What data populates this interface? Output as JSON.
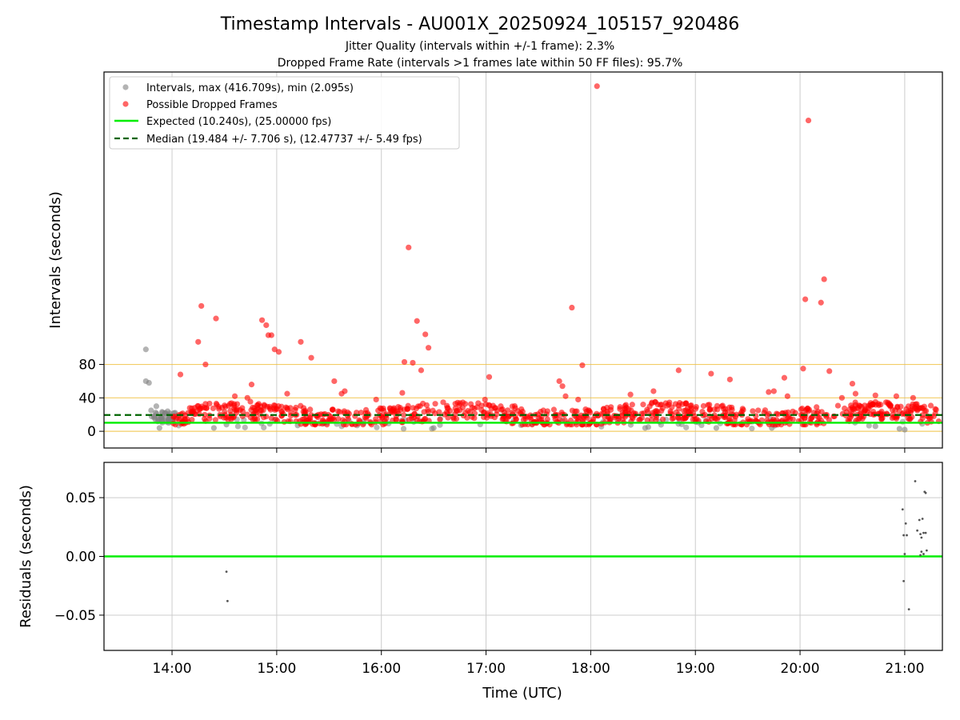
{
  "chart_data": {
    "type": "scatter",
    "title": "Timestamp Intervals - AU001X_20250924_105157_920486",
    "subtitle_lines": [
      "Jitter Quality (intervals within +/-1 frame): 2.3%",
      "Dropped Frame Rate (intervals >1 frames late within 50 FF files): 95.7%"
    ],
    "xlabel": "Time (UTC)",
    "x_ticks": [
      "14:00",
      "15:00",
      "16:00",
      "17:00",
      "18:00",
      "19:00",
      "20:00",
      "21:00"
    ],
    "x_tick_hours": [
      14,
      15,
      16,
      17,
      18,
      19,
      20,
      21
    ],
    "xlim_hours": [
      13.35,
      21.36
    ],
    "top_panel": {
      "ylabel": "Intervals (seconds)",
      "ylim": [
        -20,
        430
      ],
      "y_ticks": [
        0,
        40,
        80
      ],
      "y_tick_labels": [
        "0",
        "40",
        "80"
      ],
      "threshold_lines": [
        0,
        40,
        80
      ],
      "expected_interval": 10.24,
      "median_interval": 19.484,
      "legend": {
        "location": "upper-left",
        "entries": [
          {
            "label": "Intervals, max (416.709s), min (2.095s)",
            "kind": "gray-dot"
          },
          {
            "label": "Possible Dropped Frames",
            "kind": "red-dot"
          },
          {
            "label": "Expected (10.240s), (25.00000 fps)",
            "kind": "green-line"
          },
          {
            "label": "Median (19.484 +/- 7.706 s), (12.47737 +/- 5.49 fps)",
            "kind": "green-dashed"
          }
        ]
      },
      "dropped_outliers": [
        {
          "t": 14.08,
          "v": 68
        },
        {
          "t": 14.25,
          "v": 107
        },
        {
          "t": 14.28,
          "v": 150
        },
        {
          "t": 14.32,
          "v": 80
        },
        {
          "t": 14.42,
          "v": 135
        },
        {
          "t": 14.6,
          "v": 42
        },
        {
          "t": 14.72,
          "v": 40
        },
        {
          "t": 14.76,
          "v": 56
        },
        {
          "t": 14.86,
          "v": 133
        },
        {
          "t": 14.9,
          "v": 127
        },
        {
          "t": 14.92,
          "v": 115
        },
        {
          "t": 14.95,
          "v": 115
        },
        {
          "t": 14.98,
          "v": 98
        },
        {
          "t": 15.02,
          "v": 95
        },
        {
          "t": 15.1,
          "v": 45
        },
        {
          "t": 15.23,
          "v": 107
        },
        {
          "t": 15.33,
          "v": 88
        },
        {
          "t": 15.55,
          "v": 60
        },
        {
          "t": 15.62,
          "v": 45
        },
        {
          "t": 15.65,
          "v": 48
        },
        {
          "t": 15.95,
          "v": 38
        },
        {
          "t": 16.2,
          "v": 46
        },
        {
          "t": 16.22,
          "v": 83
        },
        {
          "t": 16.26,
          "v": 220
        },
        {
          "t": 16.3,
          "v": 82
        },
        {
          "t": 16.34,
          "v": 132
        },
        {
          "t": 16.38,
          "v": 73
        },
        {
          "t": 16.42,
          "v": 116
        },
        {
          "t": 16.45,
          "v": 100
        },
        {
          "t": 16.99,
          "v": 38
        },
        {
          "t": 17.03,
          "v": 65
        },
        {
          "t": 17.7,
          "v": 60
        },
        {
          "t": 17.73,
          "v": 54
        },
        {
          "t": 17.76,
          "v": 42
        },
        {
          "t": 17.82,
          "v": 148
        },
        {
          "t": 17.88,
          "v": 38
        },
        {
          "t": 17.92,
          "v": 79
        },
        {
          "t": 18.06,
          "v": 413
        },
        {
          "t": 18.38,
          "v": 44
        },
        {
          "t": 18.6,
          "v": 48
        },
        {
          "t": 18.84,
          "v": 73
        },
        {
          "t": 19.15,
          "v": 69
        },
        {
          "t": 19.33,
          "v": 62
        },
        {
          "t": 19.7,
          "v": 47
        },
        {
          "t": 19.75,
          "v": 48
        },
        {
          "t": 19.85,
          "v": 64
        },
        {
          "t": 19.88,
          "v": 42
        },
        {
          "t": 20.03,
          "v": 75
        },
        {
          "t": 20.05,
          "v": 158
        },
        {
          "t": 20.08,
          "v": 372
        },
        {
          "t": 20.2,
          "v": 154
        },
        {
          "t": 20.23,
          "v": 182
        },
        {
          "t": 20.28,
          "v": 72
        },
        {
          "t": 20.4,
          "v": 40
        },
        {
          "t": 20.5,
          "v": 57
        },
        {
          "t": 20.53,
          "v": 45
        },
        {
          "t": 20.72,
          "v": 43
        },
        {
          "t": 20.92,
          "v": 42
        },
        {
          "t": 21.08,
          "v": 40
        }
      ],
      "gray_outliers": [
        {
          "t": 13.75,
          "v": 98
        },
        {
          "t": 13.75,
          "v": 60
        },
        {
          "t": 13.78,
          "v": 58
        },
        {
          "t": 13.8,
          "v": 25
        },
        {
          "t": 13.83,
          "v": 18
        },
        {
          "t": 13.85,
          "v": 30
        },
        {
          "t": 13.88,
          "v": 4
        },
        {
          "t": 13.9,
          "v": 12
        },
        {
          "t": 14.4,
          "v": 4
        },
        {
          "t": 14.52,
          "v": 8
        },
        {
          "t": 15.2,
          "v": 7
        },
        {
          "t": 15.48,
          "v": 10
        },
        {
          "t": 16.5,
          "v": 4
        },
        {
          "t": 18.52,
          "v": 4
        },
        {
          "t": 18.55,
          "v": 5
        },
        {
          "t": 19.2,
          "v": 4
        },
        {
          "t": 19.73,
          "v": 4
        },
        {
          "t": 20.72,
          "v": 6
        },
        {
          "t": 20.95,
          "v": 3
        },
        {
          "t": 21.0,
          "v": 2
        }
      ]
    },
    "bottom_panel": {
      "ylabel": "Residuals (seconds)",
      "ylim": [
        -0.08,
        0.08
      ],
      "y_ticks": [
        -0.05,
        0.0,
        0.05
      ],
      "y_tick_labels": [
        "−0.05",
        "0.00",
        "0.05"
      ],
      "zero_line": 0.0,
      "residuals": [
        {
          "t": 14.52,
          "v": -0.013
        },
        {
          "t": 14.53,
          "v": -0.038
        },
        {
          "t": 20.98,
          "v": 0.04
        },
        {
          "t": 20.99,
          "v": 0.018
        },
        {
          "t": 21.0,
          "v": 0.002
        },
        {
          "t": 21.01,
          "v": 0.028
        },
        {
          "t": 21.02,
          "v": 0.018
        },
        {
          "t": 20.99,
          "v": -0.021
        },
        {
          "t": 21.04,
          "v": -0.045
        },
        {
          "t": 21.1,
          "v": 0.064
        },
        {
          "t": 21.12,
          "v": 0.022
        },
        {
          "t": 21.14,
          "v": 0.031
        },
        {
          "t": 21.15,
          "v": 0.019
        },
        {
          "t": 21.16,
          "v": 0.016
        },
        {
          "t": 21.17,
          "v": 0.032
        },
        {
          "t": 21.18,
          "v": 0.02
        },
        {
          "t": 21.19,
          "v": 0.055
        },
        {
          "t": 21.2,
          "v": 0.054
        },
        {
          "t": 21.2,
          "v": 0.02
        },
        {
          "t": 21.16,
          "v": 0.004
        },
        {
          "t": 21.18,
          "v": 0.002
        },
        {
          "t": 21.15,
          "v": 0.001
        },
        {
          "t": 21.21,
          "v": 0.005
        }
      ]
    },
    "colors": {
      "dropped": "#ff0000",
      "normal": "#808080",
      "expected": "#00ee00",
      "median": "#006400",
      "threshold": "#f0c040",
      "grid": "#cccccc",
      "residual": "#555555"
    }
  }
}
